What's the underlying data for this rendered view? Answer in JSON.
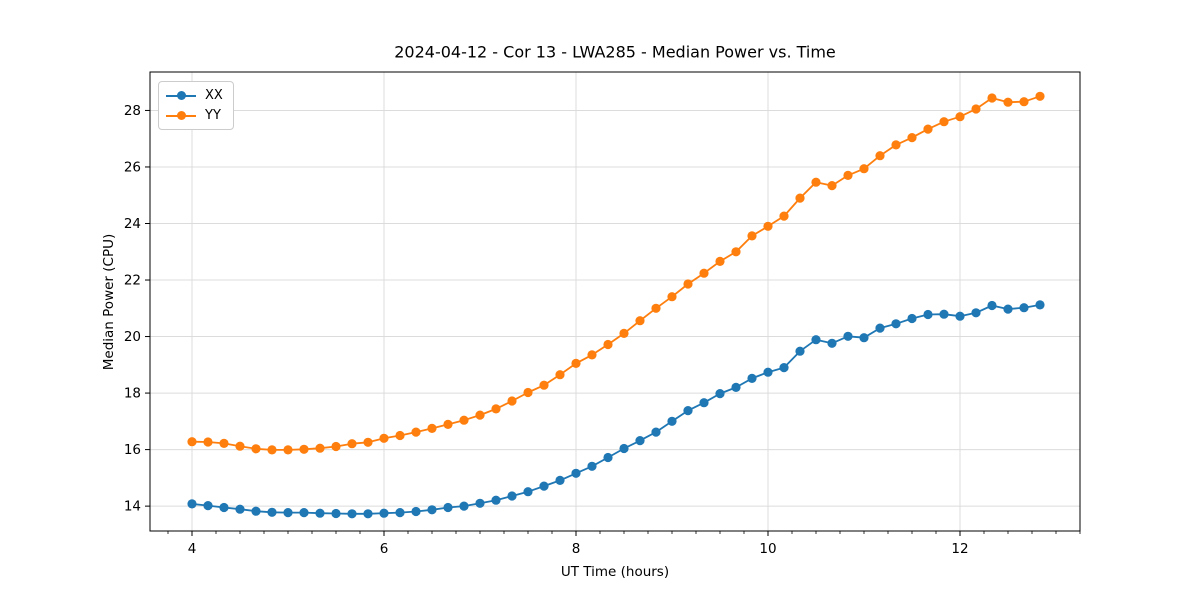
{
  "figure": {
    "background": "#ffffff",
    "spine_color": "#000000",
    "tick_color": "#000000"
  },
  "chart_data": {
    "type": "line",
    "title": "2024-04-12 - Cor 13 - LWA285 - Median Power vs. Time",
    "xlabel": "UT Time (hours)",
    "ylabel": "Median Power (CPU)",
    "xlim": [
      3.5625,
      13.25
    ],
    "ylim": [
      13.12,
      29.36
    ],
    "xticks": [
      4,
      6,
      8,
      10,
      12
    ],
    "yticks": [
      14,
      16,
      18,
      20,
      22,
      24,
      26,
      28
    ],
    "x_minor_step": 0.25,
    "grid": true,
    "grid_color": "#dcdcdc",
    "legend_position": "upper-left",
    "x": [
      4.0,
      4.167,
      4.333,
      4.5,
      4.667,
      4.833,
      5.0,
      5.167,
      5.333,
      5.5,
      5.667,
      5.833,
      6.0,
      6.167,
      6.333,
      6.5,
      6.667,
      6.833,
      7.0,
      7.167,
      7.333,
      7.5,
      7.667,
      7.833,
      8.0,
      8.167,
      8.333,
      8.5,
      8.667,
      8.833,
      9.0,
      9.167,
      9.333,
      9.5,
      9.667,
      9.833,
      10.0,
      10.167,
      10.333,
      10.5,
      10.667,
      10.833,
      11.0,
      11.167,
      11.333,
      11.5,
      11.667,
      11.833,
      12.0,
      12.167,
      12.333,
      12.5,
      12.667,
      12.833
    ],
    "series": [
      {
        "name": "XX",
        "color": "#1f77b4",
        "marker": "circle",
        "values": [
          14.08,
          14.02,
          13.95,
          13.89,
          13.82,
          13.78,
          13.77,
          13.77,
          13.75,
          13.74,
          13.73,
          13.73,
          13.75,
          13.77,
          13.81,
          13.87,
          13.95,
          14.0,
          14.1,
          14.21,
          14.36,
          14.51,
          14.71,
          14.91,
          15.16,
          15.41,
          15.72,
          16.04,
          16.32,
          16.62,
          17.0,
          17.38,
          17.66,
          17.98,
          18.2,
          18.52,
          18.74,
          18.9,
          19.48,
          19.89,
          19.76,
          20.01,
          19.96,
          20.3,
          20.45,
          20.64,
          20.78,
          20.79,
          20.72,
          20.84,
          21.1,
          20.97,
          21.02,
          21.12
        ]
      },
      {
        "name": "YY",
        "color": "#ff7f0e",
        "marker": "circle",
        "values": [
          16.28,
          16.27,
          16.22,
          16.12,
          16.03,
          15.99,
          15.99,
          16.01,
          16.05,
          16.11,
          16.21,
          16.26,
          16.4,
          16.5,
          16.62,
          16.75,
          16.89,
          17.04,
          17.22,
          17.44,
          17.72,
          18.02,
          18.28,
          18.65,
          19.05,
          19.35,
          19.72,
          20.11,
          20.56,
          21.0,
          21.41,
          21.86,
          22.24,
          22.66,
          23.0,
          23.56,
          23.9,
          24.26,
          24.9,
          25.46,
          25.34,
          25.7,
          25.94,
          26.4,
          26.78,
          27.04,
          27.34,
          27.6,
          27.78,
          28.05,
          28.44,
          28.29,
          28.31,
          28.5
        ]
      }
    ]
  }
}
